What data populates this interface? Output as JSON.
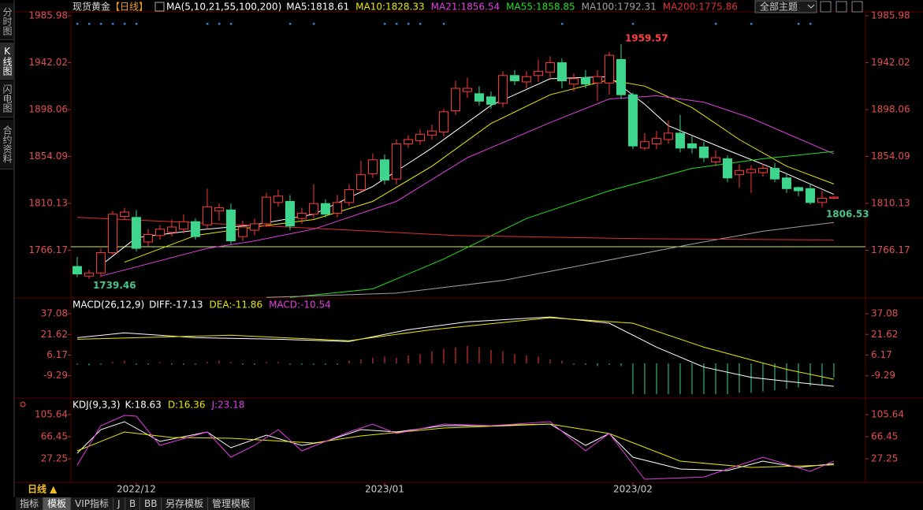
{
  "ui": {
    "left_tabs": [
      "分时图",
      "K线图",
      "闪电图",
      "合约资料"
    ],
    "title": "现货黄金",
    "period": "【日线】",
    "theme_select": "全部主题",
    "period_button": "日线 ▲",
    "bottom_tabs": [
      "指标",
      "模板",
      "VIP指标",
      "J",
      "B",
      "BB",
      "另存模板",
      "管理模板"
    ]
  },
  "chart_data": [
    {
      "type": "candlestick",
      "legend_title": "MA(5,10,21,55,100,200)",
      "open": [
        1751,
        1742,
        1745,
        1764,
        1798,
        1797,
        1774,
        1780,
        1783,
        1786,
        1793,
        1790,
        1803,
        1804,
        1779,
        1785,
        1791,
        1811,
        1812,
        1796,
        1800,
        1810,
        1801,
        1811,
        1823,
        1838,
        1851,
        1833,
        1866,
        1869,
        1874,
        1877,
        1897,
        1915,
        1913,
        1910,
        1904,
        1930,
        1924,
        1930,
        1933,
        1942,
        1922,
        1928,
        1923,
        1923,
        1945,
        1912,
        1862,
        1866,
        1870,
        1876,
        1866,
        1863,
        1849,
        1852,
        1837,
        1839,
        1839,
        1843,
        1834,
        1825,
        1824,
        1811,
        1815
      ],
      "high": [
        1760,
        1748,
        1768,
        1803,
        1806,
        1804,
        1786,
        1790,
        1795,
        1800,
        1796,
        1824,
        1810,
        1810,
        1794,
        1796,
        1820,
        1823,
        1818,
        1806,
        1828,
        1814,
        1818,
        1828,
        1850,
        1857,
        1856,
        1870,
        1874,
        1880,
        1884,
        1899,
        1925,
        1928,
        1920,
        1915,
        1934,
        1935,
        1934,
        1945,
        1948,
        1946,
        1932,
        1935,
        1935,
        1952,
        1959.57,
        1914,
        1876,
        1878,
        1888,
        1893,
        1873,
        1868,
        1860,
        1855,
        1847,
        1846,
        1847,
        1848,
        1838,
        1826,
        1829,
        1822,
        1817
      ],
      "low": [
        1741,
        1739.46,
        1741,
        1762,
        1795,
        1765,
        1770,
        1776,
        1779,
        1782,
        1776,
        1786,
        1794,
        1772,
        1775,
        1780,
        1788,
        1807,
        1785,
        1791,
        1796,
        1797,
        1797,
        1808,
        1820,
        1834,
        1828,
        1828,
        1862,
        1865,
        1870,
        1873,
        1893,
        1909,
        1902,
        1899,
        1900,
        1921,
        1918,
        1924,
        1928,
        1918,
        1915,
        1918,
        1906,
        1912,
        1908,
        1861,
        1860,
        1861,
        1866,
        1858,
        1857,
        1849,
        1845,
        1830,
        1825,
        1820,
        1835,
        1830,
        1820,
        1817,
        1809,
        1806.53,
        1814
      ],
      "close": [
        1744,
        1745,
        1764,
        1800,
        1802,
        1768,
        1781,
        1786,
        1788,
        1793,
        1779,
        1807,
        1806,
        1775,
        1788,
        1791,
        1816,
        1817,
        1789,
        1801,
        1810,
        1800,
        1811,
        1823,
        1837,
        1851,
        1832,
        1866,
        1870,
        1875,
        1878,
        1896,
        1918,
        1918,
        1906,
        1903,
        1930,
        1925,
        1929,
        1934,
        1942,
        1925,
        1927,
        1922,
        1929,
        1949,
        1912,
        1864,
        1868,
        1871,
        1876,
        1862,
        1862,
        1853,
        1853,
        1834,
        1841,
        1842,
        1843,
        1833,
        1824,
        1822,
        1811,
        1815,
        1816
      ],
      "up_color": "#ff3b3b",
      "down_color": "#3ed68c",
      "series": [
        {
          "name": "MA5:1818.61",
          "color": "#ffffff",
          "x": [
            2,
            5,
            10,
            15,
            20,
            25,
            30,
            35,
            40,
            45,
            48,
            50,
            55,
            60,
            64
          ],
          "values": [
            1752,
            1778,
            1785,
            1790,
            1800,
            1826,
            1862,
            1902,
            1927,
            1929,
            1903,
            1883,
            1860,
            1838,
            1818.61
          ]
        },
        {
          "name": "MA10:1828.33",
          "color": "#e8e800",
          "x": [
            4,
            10,
            15,
            20,
            25,
            30,
            35,
            40,
            45,
            48,
            52,
            56,
            60,
            64
          ],
          "values": [
            1755,
            1780,
            1788,
            1795,
            1812,
            1845,
            1885,
            1912,
            1926,
            1920,
            1900,
            1870,
            1845,
            1828.33
          ]
        },
        {
          "name": "MA21:1856.54",
          "color": "#e040e0",
          "x": [
            2,
            11,
            15,
            20,
            27,
            33,
            40,
            45,
            49,
            53,
            57,
            64
          ],
          "values": [
            1742,
            1768,
            1775,
            1786,
            1812,
            1853,
            1886,
            1908,
            1911,
            1905,
            1890,
            1856.54
          ]
        },
        {
          "name": "MA55:1858.85",
          "color": "#22dd22",
          "x": [
            18,
            25,
            31,
            38,
            45,
            52,
            58,
            64
          ],
          "values": [
            1722,
            1730,
            1758,
            1796,
            1822,
            1843,
            1852,
            1858.85
          ]
        },
        {
          "name": "MA100:1792.31",
          "color": "#a0a0a0",
          "x": [
            16,
            27,
            36,
            44,
            52,
            58,
            64
          ],
          "values": [
            1722,
            1726,
            1738,
            1755,
            1772,
            1784,
            1792.31
          ]
        },
        {
          "name": "MA200:1775.86",
          "color": "#e03030",
          "x": [
            0,
            16,
            32,
            48,
            64
          ],
          "values": [
            1797,
            1789,
            1780,
            1777,
            1775.86
          ]
        }
      ],
      "reference_line": {
        "value": 1769.5,
        "color": "#c8e878"
      },
      "annotations": [
        {
          "value": 1959.57,
          "x": 46,
          "color": "#ff4040"
        },
        {
          "value": 1739.46,
          "x": 1,
          "color": "#4cc38a"
        },
        {
          "value": 1806.53,
          "x": 63,
          "color": "#4cc38a"
        }
      ],
      "signal_markers": [
        0,
        1,
        2,
        3,
        4,
        5,
        11,
        12,
        13,
        18,
        20,
        26,
        27,
        28,
        29,
        31,
        41,
        47,
        54,
        57,
        61,
        62
      ],
      "signal_color": "#3b7fd6",
      "ylim": [
        1721.5,
        1989.7
      ],
      "yticks": [
        1985.98,
        1942.02,
        1898.06,
        1854.09,
        1810.13,
        1766.17
      ],
      "xlim": [
        -0.53,
        66.67
      ],
      "xticks": [
        {
          "value": 5,
          "label": "2022/12"
        },
        {
          "value": 26,
          "label": "2023/01"
        },
        {
          "value": 47,
          "label": "2023/02"
        }
      ]
    },
    {
      "type": "macd",
      "title": "MACD(26,12,9)",
      "series": [
        {
          "name": "DIFF:-17.13",
          "color": "#ffffff",
          "x": [
            0,
            4,
            10,
            17,
            23,
            28,
            33,
            40,
            45,
            49,
            53,
            57,
            64
          ],
          "values": [
            19.2,
            22.8,
            19.2,
            18.0,
            16.3,
            25.2,
            31.1,
            34.7,
            30.0,
            12.1,
            -2.8,
            -10.5,
            -17.13
          ]
        },
        {
          "name": "DEA:-11.86",
          "color": "#e8e800",
          "x": [
            0,
            13,
            23,
            30,
            40,
            47,
            53,
            60,
            64
          ],
          "values": [
            18.0,
            21.0,
            16.9,
            25.2,
            34.1,
            30.0,
            12.1,
            -4.5,
            -11.86
          ]
        }
      ],
      "histogram": {
        "name": "MACD:-10.54",
        "color": "#e040e0",
        "up_color": "#ff3b3b",
        "down_color": "#3ed68c",
        "values": [
          -1,
          -1.5,
          -1,
          1,
          2,
          -1,
          -1,
          1,
          -1,
          -1,
          -1,
          1,
          2,
          1,
          -1,
          -1,
          1,
          1,
          -1,
          -1,
          -1,
          -1,
          -1,
          2,
          3,
          4,
          5,
          4,
          6,
          7,
          9,
          11,
          12,
          13,
          12,
          10,
          9,
          7,
          6,
          5,
          3,
          2,
          -1,
          -1,
          -2,
          -1,
          -2,
          -23,
          -23,
          -23,
          -23,
          -23,
          -23,
          -23,
          -23,
          -23,
          -22,
          -22,
          -21,
          -20,
          -19,
          -18,
          -17,
          -16,
          -10.54
        ]
      },
      "ylim": [
        -24.75,
        41.8
      ],
      "yticks": [
        37.08,
        21.62,
        6.17,
        -9.29
      ]
    },
    {
      "type": "kdj",
      "title": "KDJ(9,3,3)",
      "series": [
        {
          "name": "K:18.63",
          "color": "#ffffff",
          "x": [
            0,
            2,
            4,
            7,
            11,
            13,
            16,
            19,
            21,
            24,
            27,
            31,
            35,
            40,
            43,
            45,
            47,
            51,
            55,
            58,
            61,
            64
          ],
          "values": [
            37.1,
            79.0,
            93.0,
            58.0,
            74.9,
            46.9,
            69.3,
            51.1,
            58.0,
            79.0,
            74.9,
            86.0,
            86.0,
            88.8,
            51.1,
            72.0,
            30.1,
            9.1,
            6.3,
            23.1,
            11.9,
            18.63
          ]
        },
        {
          "name": "D:16.36",
          "color": "#e8e800",
          "x": [
            0,
            4,
            8,
            13,
            20,
            24,
            31,
            40,
            45,
            51,
            57,
            64
          ],
          "values": [
            41.3,
            74.9,
            65.1,
            63.7,
            55.3,
            67.9,
            81.8,
            88.8,
            72.0,
            23.1,
            11.9,
            16.36
          ]
        },
        {
          "name": "J:23.18",
          "color": "#e040e0",
          "x": [
            0,
            2,
            4,
            5,
            7,
            11,
            13,
            15,
            17,
            19,
            23,
            25,
            27,
            31,
            35,
            40,
            43,
            45,
            48,
            53,
            58,
            62,
            64
          ],
          "values": [
            16.1,
            86.0,
            104.2,
            102.8,
            51.1,
            74.9,
            30.1,
            51.1,
            79.0,
            41.3,
            74.9,
            88.8,
            72.0,
            88.8,
            86.0,
            93.0,
            41.3,
            72.0,
            -9.1,
            -5.0,
            30.1,
            4.9,
            23.18
          ]
        }
      ],
      "ylim": [
        -14.7,
        114.0
      ],
      "yticks": [
        105.64,
        66.45,
        27.25
      ]
    }
  ]
}
